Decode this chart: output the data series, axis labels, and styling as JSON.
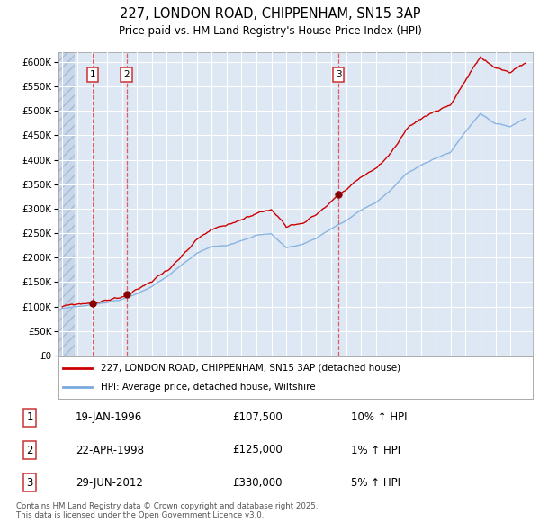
{
  "title": "227, LONDON ROAD, CHIPPENHAM, SN15 3AP",
  "subtitle": "Price paid vs. HM Land Registry's House Price Index (HPI)",
  "sale_label": "227, LONDON ROAD, CHIPPENHAM, SN15 3AP (detached house)",
  "hpi_label": "HPI: Average price, detached house, Wiltshire",
  "copyright_text": "Contains HM Land Registry data © Crown copyright and database right 2025.\nThis data is licensed under the Open Government Licence v3.0.",
  "transactions": [
    {
      "num": 1,
      "date": "19-JAN-1996",
      "price": 107500,
      "hpi_pct": "10%",
      "direction": "↑"
    },
    {
      "num": 2,
      "date": "22-APR-1998",
      "price": 125000,
      "hpi_pct": "1%",
      "direction": "↑"
    },
    {
      "num": 3,
      "date": "29-JUN-2012",
      "price": 330000,
      "hpi_pct": "5%",
      "direction": "↑"
    }
  ],
  "transaction_dates_decimal": [
    1996.05,
    1998.31,
    2012.49
  ],
  "transaction_prices": [
    107500,
    125000,
    330000
  ],
  "ylim": [
    0,
    620000
  ],
  "yticks": [
    0,
    50000,
    100000,
    150000,
    200000,
    250000,
    300000,
    350000,
    400000,
    450000,
    500000,
    550000,
    600000
  ],
  "xlim_start": 1993.75,
  "xlim_end": 2025.5,
  "plot_bg_color": "#dde8f4",
  "red_line_color": "#cc0000",
  "blue_line_color": "#7aaadd",
  "marker_color": "#880000",
  "dashed_color": "#dd4444",
  "box_edge_color": "#cc3333",
  "legend_border": "#aaaaaa",
  "hatch_bg": "#c8d8ea"
}
